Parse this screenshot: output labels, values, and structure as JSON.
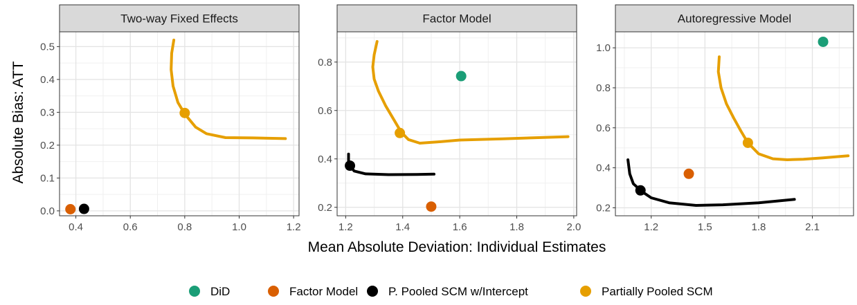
{
  "figure": {
    "xlabel": "Mean Absolute Deviation: Individual Estimates",
    "ylabel": "Absolute Bias: ATT",
    "legend_position": "bottom",
    "legend": [
      {
        "name": "DiD",
        "color": "#1b9e77"
      },
      {
        "name": "Factor Model",
        "color": "#d95f02"
      },
      {
        "name": "P. Pooled SCM w/Intercept",
        "color": "#000000"
      },
      {
        "name": "Partially Pooled SCM",
        "color": "#e69f00"
      }
    ]
  },
  "chart_data": [
    {
      "type": "scatter",
      "title": "Two-way Fixed Effects",
      "xlim": [
        0.34,
        1.22
      ],
      "ylim": [
        -0.015,
        0.545
      ],
      "xticks": [
        0.4,
        0.6,
        0.8,
        1.0,
        1.2
      ],
      "xtick_labels": [
        "0.4",
        "0.6",
        "0.8",
        "1.0",
        "1.2"
      ],
      "yticks": [
        0.0,
        0.1,
        0.2,
        0.3,
        0.4,
        0.5
      ],
      "ytick_labels": [
        "0.0",
        "0.1",
        "0.2",
        "0.3",
        "0.4",
        "0.5"
      ],
      "grid": true,
      "curves": [
        {
          "series": "Partially Pooled SCM",
          "points": [
            [
              0.76,
              0.52
            ],
            [
              0.752,
              0.48
            ],
            [
              0.75,
              0.43
            ],
            [
              0.757,
              0.38
            ],
            [
              0.775,
              0.33
            ],
            [
              0.8,
              0.295
            ],
            [
              0.84,
              0.255
            ],
            [
              0.88,
              0.235
            ],
            [
              0.95,
              0.223
            ],
            [
              1.05,
              0.222
            ],
            [
              1.17,
              0.22
            ]
          ]
        },
        {
          "series": "P. Pooled SCM w/Intercept",
          "points": []
        }
      ],
      "points": [
        {
          "series": "Partially Pooled SCM",
          "x": 0.8,
          "y": 0.298
        },
        {
          "series": "Factor Model",
          "x": 0.38,
          "y": 0.005
        },
        {
          "series": "P. Pooled SCM w/Intercept",
          "x": 0.43,
          "y": 0.006
        }
      ]
    },
    {
      "type": "scatter",
      "title": "Factor Model",
      "xlim": [
        1.17,
        2.01
      ],
      "ylim": [
        0.165,
        0.925
      ],
      "xticks": [
        1.2,
        1.4,
        1.6,
        1.8,
        2.0
      ],
      "xtick_labels": [
        "1.2",
        "1.4",
        "1.6",
        "1.8",
        "2.0"
      ],
      "yticks": [
        0.2,
        0.4,
        0.6,
        0.8
      ],
      "ytick_labels": [
        "0.2",
        "0.4",
        "0.6",
        "0.8"
      ],
      "grid": true,
      "curves": [
        {
          "series": "Partially Pooled SCM",
          "points": [
            [
              1.31,
              0.885
            ],
            [
              1.3,
              0.83
            ],
            [
              1.295,
              0.78
            ],
            [
              1.3,
              0.73
            ],
            [
              1.315,
              0.68
            ],
            [
              1.34,
              0.62
            ],
            [
              1.37,
              0.56
            ],
            [
              1.395,
              0.51
            ],
            [
              1.42,
              0.48
            ],
            [
              1.46,
              0.465
            ],
            [
              1.52,
              0.47
            ],
            [
              1.6,
              0.478
            ],
            [
              1.75,
              0.483
            ],
            [
              1.98,
              0.492
            ]
          ]
        },
        {
          "series": "P. Pooled SCM w/Intercept",
          "points": [
            [
              1.21,
              0.42
            ],
            [
              1.21,
              0.39
            ],
            [
              1.215,
              0.37
            ],
            [
              1.23,
              0.35
            ],
            [
              1.27,
              0.338
            ],
            [
              1.35,
              0.335
            ],
            [
              1.45,
              0.336
            ],
            [
              1.51,
              0.337
            ]
          ]
        }
      ],
      "points": [
        {
          "series": "DiD",
          "x": 1.605,
          "y": 0.742
        },
        {
          "series": "Partially Pooled SCM",
          "x": 1.39,
          "y": 0.507
        },
        {
          "series": "P. Pooled SCM w/Intercept",
          "x": 1.215,
          "y": 0.372
        },
        {
          "series": "Factor Model",
          "x": 1.5,
          "y": 0.203
        }
      ]
    },
    {
      "type": "scatter",
      "title": "Autoregressive Model",
      "xlim": [
        1.0,
        2.33
      ],
      "ylim": [
        0.16,
        1.08
      ],
      "xticks": [
        1.2,
        1.5,
        1.8,
        2.1
      ],
      "xtick_labels": [
        "1.2",
        "1.5",
        "1.8",
        "2.1"
      ],
      "yticks": [
        0.2,
        0.4,
        0.6,
        0.8,
        1.0
      ],
      "ytick_labels": [
        "0.2",
        "0.4",
        "0.6",
        "0.8",
        "1.0"
      ],
      "grid": true,
      "curves": [
        {
          "series": "Partially Pooled SCM",
          "points": [
            [
              1.58,
              0.955
            ],
            [
              1.575,
              0.88
            ],
            [
              1.59,
              0.8
            ],
            [
              1.62,
              0.72
            ],
            [
              1.66,
              0.65
            ],
            [
              1.7,
              0.585
            ],
            [
              1.74,
              0.525
            ],
            [
              1.8,
              0.47
            ],
            [
              1.88,
              0.445
            ],
            [
              1.96,
              0.44
            ],
            [
              2.05,
              0.443
            ],
            [
              2.16,
              0.45
            ],
            [
              2.3,
              0.46
            ]
          ]
        },
        {
          "series": "P. Pooled SCM w/Intercept",
          "points": [
            [
              1.07,
              0.44
            ],
            [
              1.08,
              0.37
            ],
            [
              1.1,
              0.32
            ],
            [
              1.15,
              0.28
            ],
            [
              1.2,
              0.25
            ],
            [
              1.3,
              0.225
            ],
            [
              1.45,
              0.212
            ],
            [
              1.6,
              0.215
            ],
            [
              1.8,
              0.225
            ],
            [
              2.0,
              0.242
            ]
          ]
        }
      ],
      "points": [
        {
          "series": "DiD",
          "x": 2.16,
          "y": 1.03
        },
        {
          "series": "Partially Pooled SCM",
          "x": 1.74,
          "y": 0.525
        },
        {
          "series": "Factor Model",
          "x": 1.41,
          "y": 0.37
        },
        {
          "series": "P. Pooled SCM w/Intercept",
          "x": 1.14,
          "y": 0.287
        }
      ]
    }
  ]
}
